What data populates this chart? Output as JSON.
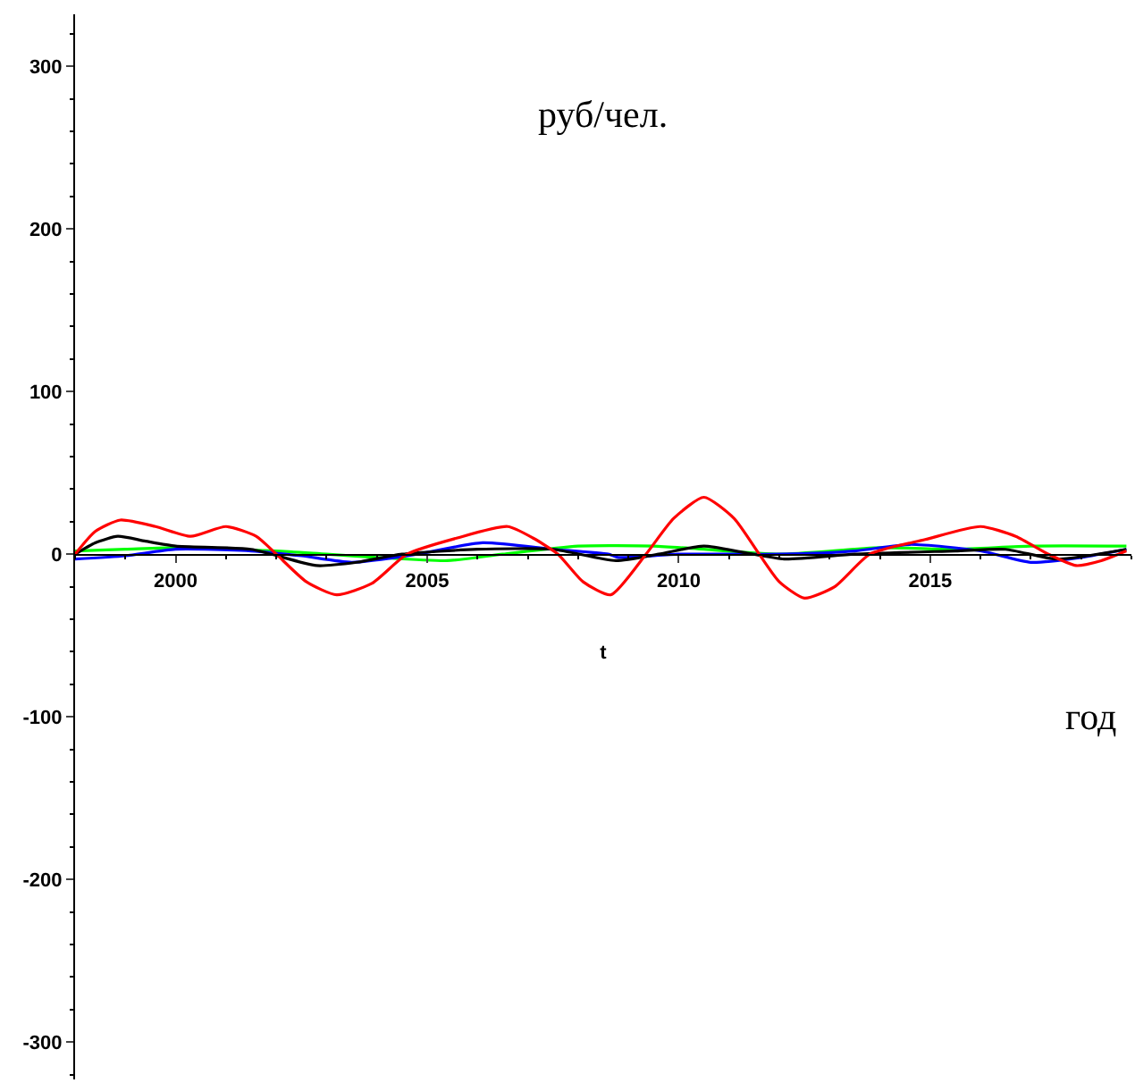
{
  "chart_data": {
    "type": "line",
    "xlabel": "t",
    "annotations": [
      "руб/чел.",
      "год"
    ],
    "xlim": [
      1998,
      2019
    ],
    "ylim": [
      -323,
      332
    ],
    "xticks": [
      2000,
      2005,
      2010,
      2015
    ],
    "yticks": [
      -300,
      -200,
      -100,
      0,
      100,
      200,
      300
    ],
    "marker": "none",
    "line_style": "solid",
    "series": [
      {
        "color": "#00ff00",
        "x": [
          1998,
          1999,
          2000,
          2001,
          2002,
          2003,
          2004,
          2005.4,
          2006.5,
          2008,
          2009.5,
          2010.5,
          2012,
          2014,
          2015.5,
          2017,
          2018.9
        ],
        "values": [
          2,
          3,
          4,
          3,
          2,
          0,
          -2,
          -4,
          0,
          5,
          5,
          3,
          0,
          4,
          3,
          5,
          5
        ]
      },
      {
        "color": "#0000ff",
        "x": [
          1998,
          1999,
          2000,
          2001.5,
          2002.5,
          2003.5,
          2004.8,
          2006.1,
          2007.5,
          2008.6,
          2008.8,
          2010,
          2012,
          2013.5,
          2014.6,
          2016,
          2017,
          2018,
          2018.9
        ],
        "values": [
          -3,
          -1,
          3,
          2,
          -1,
          -5,
          0,
          7,
          3,
          0,
          -2,
          0,
          0,
          2,
          6,
          2,
          -5,
          -2,
          3
        ]
      },
      {
        "color": "#000000",
        "x": [
          1998,
          1998.4,
          1998.85,
          1999.4,
          2000,
          2001.5,
          2002.8,
          2003.6,
          2004.5,
          2006,
          2007.5,
          2008.75,
          2009.6,
          2010.5,
          2011.3,
          2012.1,
          2013.5,
          2015.5,
          2016.5,
          2017.5,
          2018.9
        ],
        "values": [
          0,
          7,
          11,
          8,
          5,
          3,
          -7,
          -5,
          0,
          3,
          3,
          -4,
          0,
          5,
          1,
          -3,
          0,
          2,
          3,
          -3,
          3
        ]
      },
      {
        "color": "#ff0000",
        "x": [
          1998,
          1998.4,
          1998.9,
          1999.6,
          2000.3,
          2001,
          2001.6,
          2002,
          2002.6,
          2003.2,
          2003.9,
          2004.6,
          2005.6,
          2006.6,
          2007.1,
          2007.6,
          2008.1,
          2008.65,
          2009.35,
          2009.9,
          2010.5,
          2011.1,
          2011.6,
          2012,
          2012.5,
          2013.1,
          2013.8,
          2014.9,
          2016,
          2016.7,
          2017.35,
          2017.9,
          2018.4,
          2018.9
        ],
        "values": [
          0,
          14,
          21,
          17,
          11,
          17,
          11,
          0,
          -17,
          -25,
          -18,
          0,
          10,
          17,
          10,
          0,
          -17,
          -25,
          0,
          22,
          35,
          22,
          0,
          -17,
          -27,
          -20,
          0,
          9,
          17,
          11,
          0,
          -7,
          -4,
          2
        ]
      }
    ]
  }
}
